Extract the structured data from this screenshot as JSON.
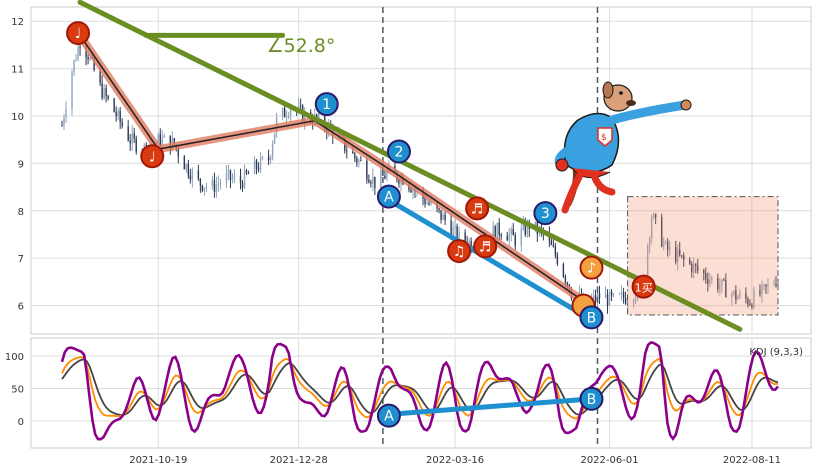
{
  "chart_data": [
    {
      "type": "candlestick",
      "panel": "price",
      "x_ticks": [
        "2021-10-19",
        "2021-12-28",
        "2022-03-16",
        "2022-06-01",
        "2022-08-11"
      ],
      "y_ticks": [
        6,
        7,
        8,
        9,
        10,
        11,
        12
      ],
      "ylim": [
        5.4,
        12.3
      ],
      "grid": true,
      "price_path": [
        [
          "2021-09-01",
          9.8
        ],
        [
          "2021-09-05",
          10.8
        ],
        [
          "2021-09-10",
          11.6
        ],
        [
          "2021-09-14",
          11.3
        ],
        [
          "2021-09-20",
          10.6
        ],
        [
          "2021-09-27",
          10.1
        ],
        [
          "2021-10-05",
          9.5
        ],
        [
          "2021-10-12",
          9.3
        ],
        [
          "2021-10-20",
          9.5
        ],
        [
          "2021-10-27",
          9.4
        ],
        [
          "2021-11-01",
          9.0
        ],
        [
          "2021-11-08",
          8.6
        ],
        [
          "2021-11-15",
          8.5
        ],
        [
          "2021-11-22",
          8.7
        ],
        [
          "2021-11-29",
          8.6
        ],
        [
          "2021-12-06",
          8.9
        ],
        [
          "2021-12-13",
          9.1
        ],
        [
          "2021-12-17",
          9.9
        ],
        [
          "2021-12-24",
          10.2
        ],
        [
          "2021-12-31",
          10.0
        ],
        [
          "2022-01-07",
          9.9
        ],
        [
          "2022-01-14",
          9.7
        ],
        [
          "2022-01-21",
          9.3
        ],
        [
          "2022-01-28",
          9.0
        ],
        [
          "2022-02-04",
          8.6
        ],
        [
          "2022-02-11",
          8.8
        ],
        [
          "2022-02-18",
          8.7
        ],
        [
          "2022-02-25",
          8.4
        ],
        [
          "2022-03-04",
          8.1
        ],
        [
          "2022-03-11",
          7.8
        ],
        [
          "2022-03-18",
          7.4
        ],
        [
          "2022-03-25",
          7.3
        ],
        [
          "2022-04-01",
          7.5
        ],
        [
          "2022-04-08",
          7.6
        ],
        [
          "2022-04-15",
          7.4
        ],
        [
          "2022-04-22",
          7.7
        ],
        [
          "2022-04-29",
          7.5
        ],
        [
          "2022-05-06",
          7.0
        ],
        [
          "2022-05-13",
          6.3
        ],
        [
          "2022-05-20",
          6.0
        ],
        [
          "2022-05-27",
          6.2
        ],
        [
          "2022-06-03",
          6.1
        ],
        [
          "2022-06-10",
          6.2
        ],
        [
          "2022-06-17",
          6.4
        ],
        [
          "2022-06-22",
          7.9
        ],
        [
          "2022-06-29",
          7.2
        ],
        [
          "2022-07-06",
          7.0
        ],
        [
          "2022-07-13",
          6.8
        ],
        [
          "2022-07-20",
          6.6
        ],
        [
          "2022-07-27",
          6.4
        ],
        [
          "2022-08-03",
          6.2
        ],
        [
          "2022-08-10",
          6.1
        ],
        [
          "2022-08-17",
          6.3
        ],
        [
          "2022-08-24",
          6.6
        ]
      ],
      "trend_line": {
        "from": [
          "2021-09-10",
          12.4
        ],
        "to": [
          "2022-08-05",
          5.5
        ],
        "color": "#6b8e23"
      },
      "angle_label": "∠52.8°",
      "wave_path": [
        [
          "2021-09-10",
          11.7
        ],
        [
          "2021-10-19",
          9.3
        ],
        [
          "2022-01-05",
          9.9
        ],
        [
          "2022-02-14",
          8.8
        ],
        [
          "2022-05-19",
          6.1
        ]
      ],
      "ab_line": {
        "from": [
          "2022-02-08",
          8.3
        ],
        "to": [
          "2022-05-19",
          5.8
        ],
        "color": "#1e90d0"
      },
      "markers": [
        {
          "type": "note",
          "label": "♩",
          "date": "2021-09-09",
          "value": 11.75
        },
        {
          "type": "note",
          "label": "♩",
          "date": "2021-10-16",
          "value": 9.15
        },
        {
          "type": "note",
          "label": "♫",
          "date": "2022-03-18",
          "value": 7.15
        },
        {
          "type": "note",
          "label": "♬",
          "date": "2022-03-27",
          "value": 8.05
        },
        {
          "type": "note",
          "label": "♬",
          "date": "2022-03-31",
          "value": 7.25
        },
        {
          "type": "note-orange",
          "label": "♪",
          "date": "2022-05-23",
          "value": 6.8
        },
        {
          "type": "note-orange",
          "label": "",
          "date": "2022-05-19",
          "value": 6.0
        },
        {
          "type": "wave",
          "label": "1",
          "date": "2022-01-11",
          "value": 10.25
        },
        {
          "type": "wave",
          "label": "2",
          "date": "2022-02-16",
          "value": 9.25
        },
        {
          "type": "wave",
          "label": "3",
          "date": "2022-04-30",
          "value": 7.95
        },
        {
          "type": "wave",
          "label": "A",
          "date": "2022-02-11",
          "value": 8.3
        },
        {
          "type": "wave",
          "label": "B",
          "date": "2022-05-23",
          "value": 5.75
        },
        {
          "type": "note",
          "label": "1买",
          "date": "2022-06-18",
          "value": 6.4
        }
      ],
      "highlight_box": {
        "from": [
          "2022-06-10",
          8.3
        ],
        "to": [
          "2022-08-24",
          5.8
        ]
      },
      "vlines": [
        "2022-02-08",
        "2022-05-26"
      ]
    },
    {
      "type": "line",
      "panel": "indicator",
      "label": "KDJ (9,3,3)",
      "y_ticks": [
        0,
        50,
        100
      ],
      "ylim": [
        -42,
        128
      ],
      "series": [
        {
          "color": "#8b008b"
        },
        {
          "color": "#ff8c00"
        },
        {
          "color": "#444444"
        }
      ],
      "ab_line": {
        "from": [
          "2022-02-11",
          10
        ],
        "to": [
          "2022-05-23",
          34
        ],
        "color": "#1e90d0"
      },
      "markers": [
        {
          "type": "wave",
          "label": "A",
          "date": "2022-02-11",
          "value": 8
        },
        {
          "type": "wave",
          "label": "B",
          "date": "2022-05-23",
          "value": 34
        }
      ]
    }
  ]
}
